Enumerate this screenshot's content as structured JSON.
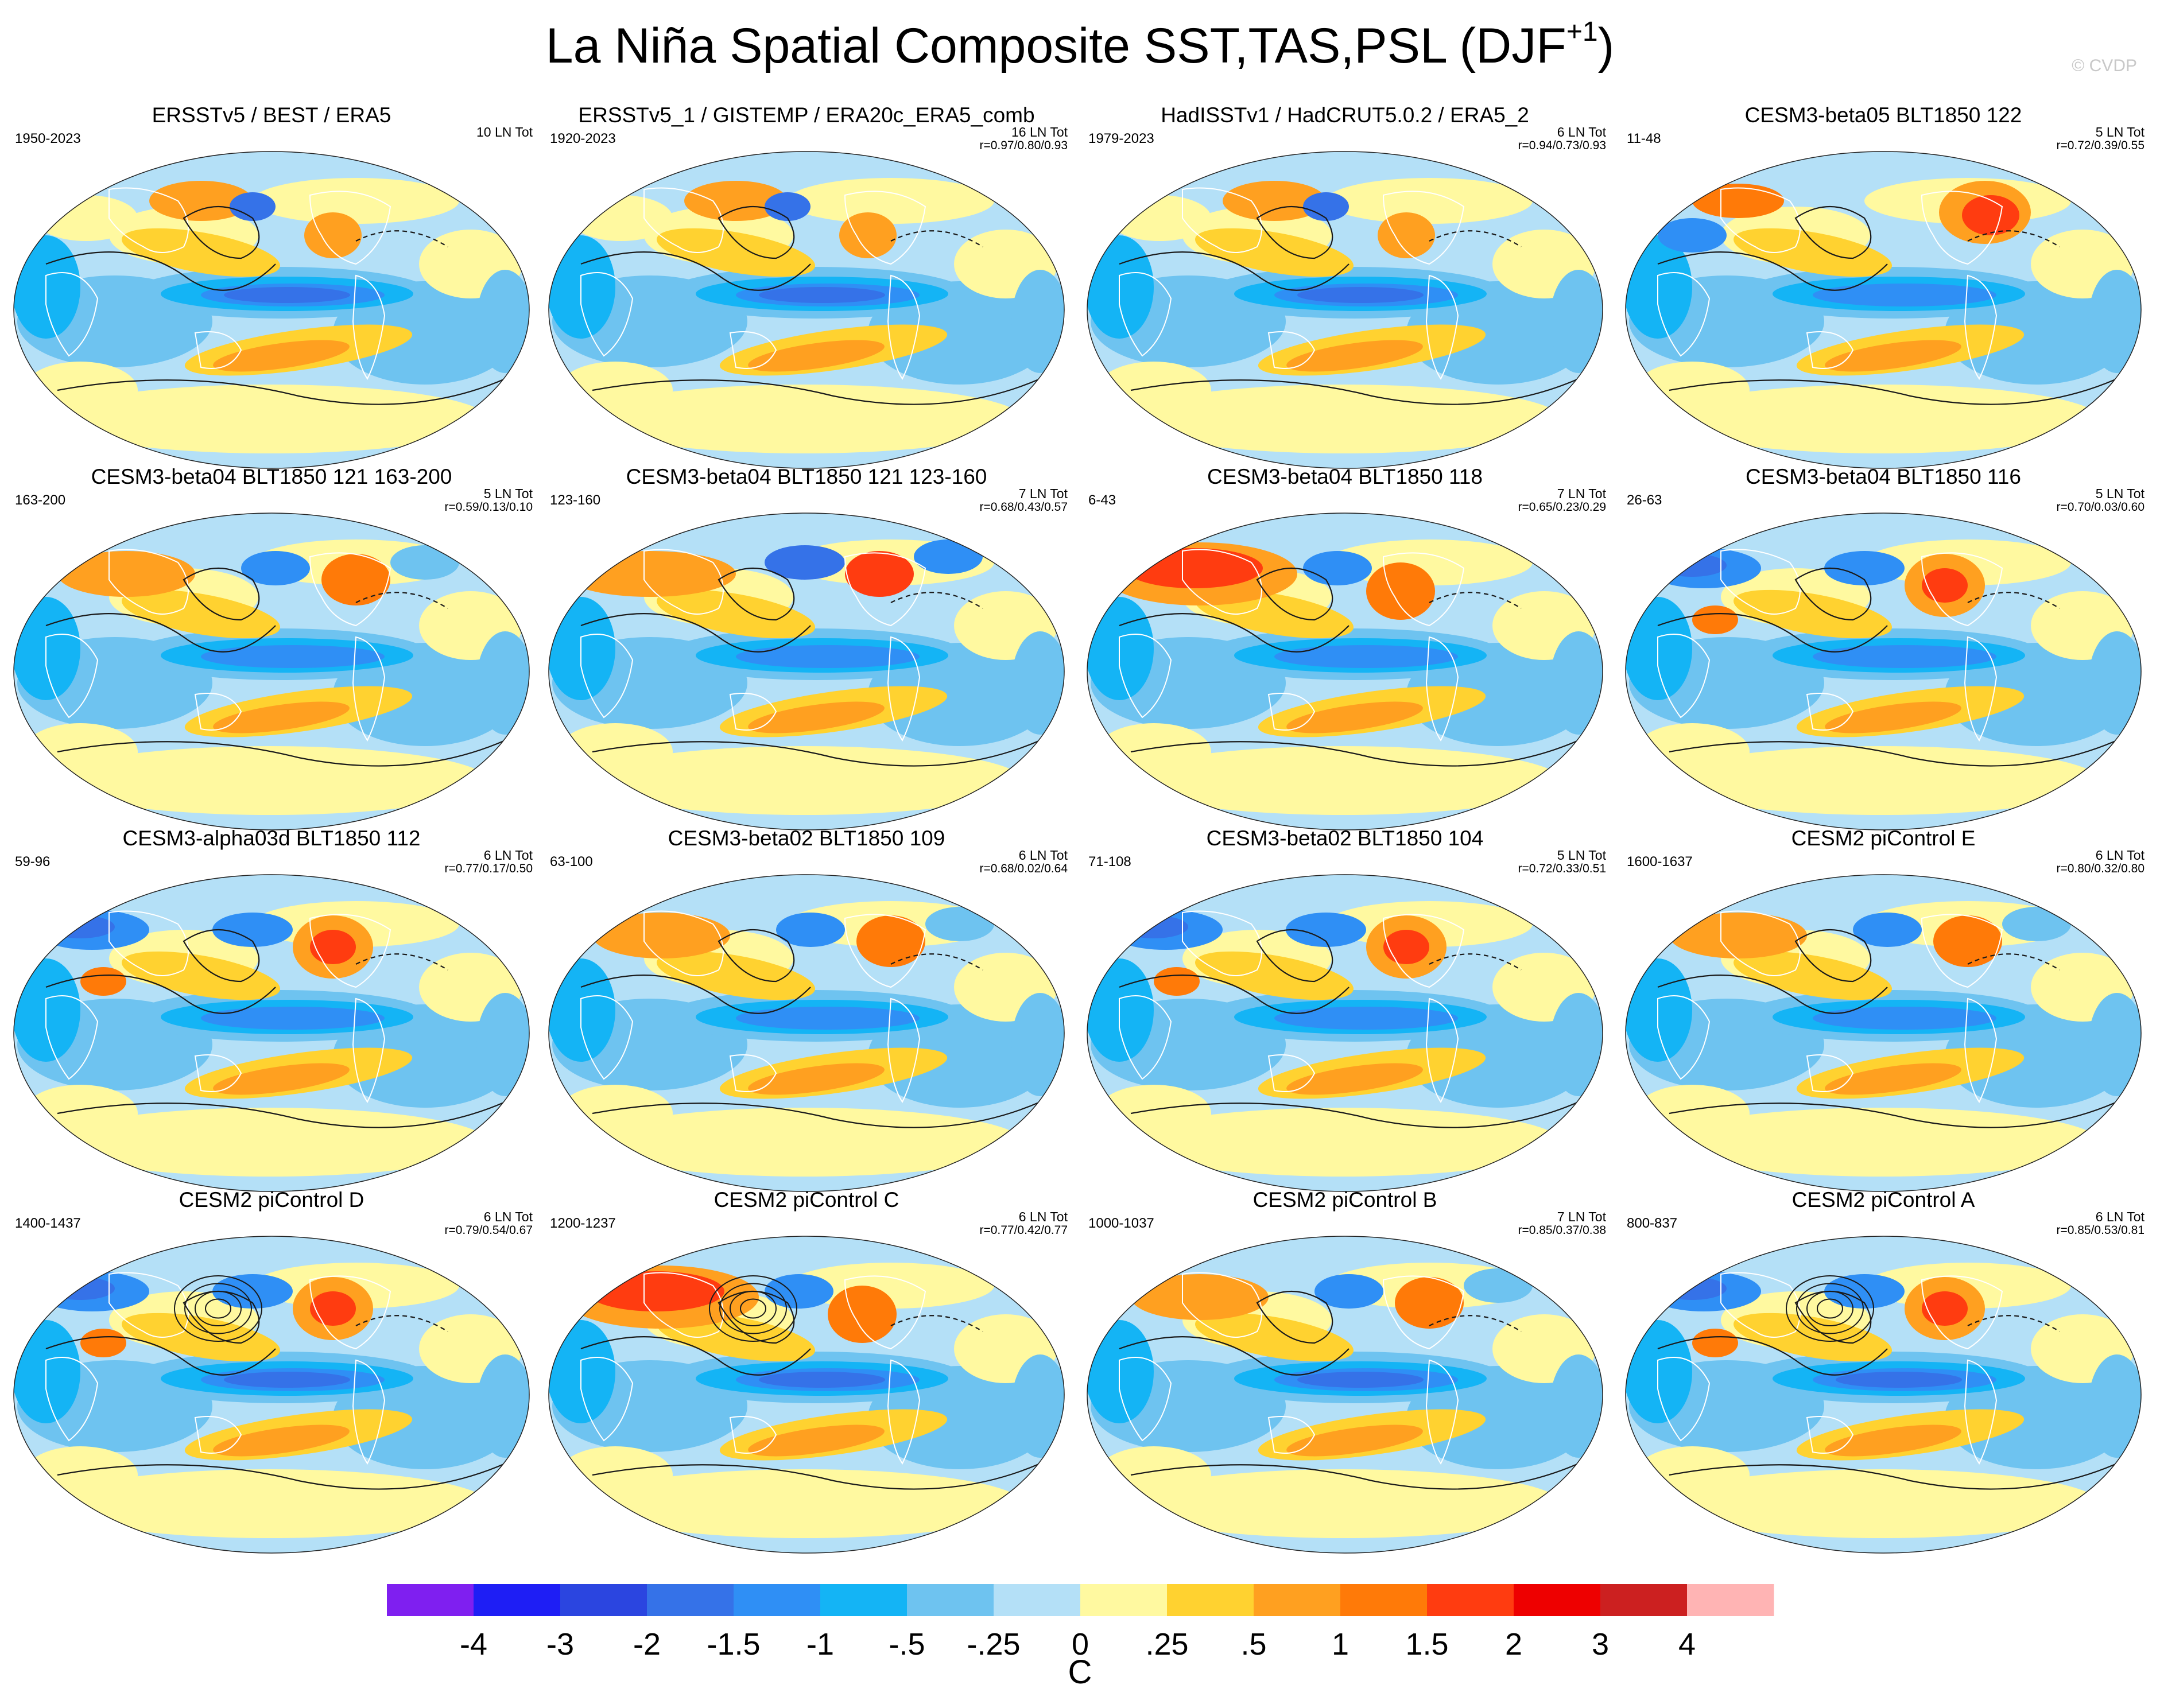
{
  "title": "La Niña Spatial Composite SST,TAS,PSL (DJF",
  "title_sup": "+1",
  "title_close": ")",
  "credit": "© CVDP",
  "panels": [
    {
      "title": "ERSSTv5 / BEST / ERA5",
      "years": "1950-2023",
      "count": "10 LN Tot",
      "stats": "",
      "style": "obs1"
    },
    {
      "title": "ERSSTv5_1 / GISTEMP / ERA20c_ERA5_comb",
      "years": "1920-2023",
      "count": "16 LN Tot",
      "stats": "r=0.97/0.80/0.93",
      "style": "obs2"
    },
    {
      "title": "HadISSTv1 / HadCRUT5.0.2 / ERA5_2",
      "years": "1979-2023",
      "count": "6 LN Tot",
      "stats": "r=0.94/0.73/0.93",
      "style": "obs3"
    },
    {
      "title": "CESM3-beta05 BLT1850 122",
      "years": "11-48",
      "count": "5 LN Tot",
      "stats": "r=0.72/0.39/0.55",
      "style": "warmEurasia"
    },
    {
      "title": "CESM3-beta04 BLT1850 121 163-200",
      "years": "163-200",
      "count": "5 LN Tot",
      "stats": "r=0.59/0.13/0.10",
      "style": "mixed"
    },
    {
      "title": "CESM3-beta04 BLT1850 121 123-160",
      "years": "123-160",
      "count": "7 LN Tot",
      "stats": "r=0.68/0.43/0.57",
      "style": "mixedCold"
    },
    {
      "title": "CESM3-beta04 BLT1850 118",
      "years": "6-43",
      "count": "7 LN Tot",
      "stats": "r=0.65/0.23/0.29",
      "style": "warmNA"
    },
    {
      "title": "CESM3-beta04 BLT1850 116",
      "years": "26-63",
      "count": "5 LN Tot",
      "stats": "r=0.70/0.03/0.60",
      "style": "coldNA"
    },
    {
      "title": "CESM3-alpha03d BLT1850 112",
      "years": "59-96",
      "count": "6 LN Tot",
      "stats": "r=0.77/0.17/0.50",
      "style": "coldNA"
    },
    {
      "title": "CESM3-beta02 BLT1850 109",
      "years": "63-100",
      "count": "6 LN Tot",
      "stats": "r=0.68/0.02/0.64",
      "style": "mixed"
    },
    {
      "title": "CESM3-beta02 BLT1850 104",
      "years": "71-108",
      "count": "5 LN Tot",
      "stats": "r=0.72/0.33/0.51",
      "style": "coldNA"
    },
    {
      "title": "CESM2 piControl E",
      "years": "1600-1637",
      "count": "6 LN Tot",
      "stats": "r=0.80/0.32/0.80",
      "style": "mixed"
    },
    {
      "title": "CESM2 piControl D",
      "years": "1400-1437",
      "count": "6 LN Tot",
      "stats": "r=0.79/0.54/0.67",
      "style": "coldNA"
    },
    {
      "title": "CESM2 piControl C",
      "years": "1200-1237",
      "count": "6 LN Tot",
      "stats": "r=0.77/0.42/0.77",
      "style": "warmNA"
    },
    {
      "title": "CESM2 piControl B",
      "years": "1000-1037",
      "count": "7 LN Tot",
      "stats": "r=0.85/0.37/0.38",
      "style": "mixed"
    },
    {
      "title": "CESM2 piControl A",
      "years": "800-837",
      "count": "6 LN Tot",
      "stats": "r=0.85/0.53/0.81",
      "style": "coldNA"
    }
  ],
  "colorbar": {
    "colors": [
      "#7f1ff0",
      "#1e1ef5",
      "#2b45e0",
      "#3572e8",
      "#2f8ff5",
      "#14b4f5",
      "#6ec3f0",
      "#b4e0f7",
      "#fff9a0",
      "#ffd230",
      "#ffa020",
      "#ff7a08",
      "#ff3c10",
      "#ee0000",
      "#cc2020",
      "#ffb4b4"
    ],
    "labels": [
      "-4",
      "-3",
      "-2",
      "-1.5",
      "-1",
      "-.5",
      "-.25",
      "0",
      ".25",
      ".5",
      "1",
      "1.5",
      "2",
      "3",
      "4"
    ],
    "unit": "C"
  },
  "palette": {
    "ocean_base": "#b4e0f7",
    "land_outline": "#ffffff",
    "contour": "#1a1a1a"
  }
}
